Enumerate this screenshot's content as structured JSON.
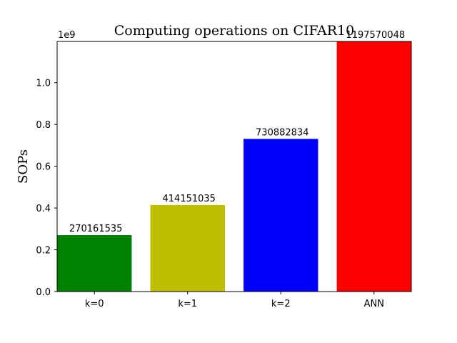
{
  "chart_data": {
    "type": "bar",
    "title": "Computing operations on CIFAR10",
    "xlabel": "",
    "ylabel": "SOPs",
    "y_offset_label": "1e9",
    "y_scale": 1000000000,
    "ylim": [
      0,
      1197570048
    ],
    "yticks": [
      0.0,
      0.2,
      0.4,
      0.6,
      0.8,
      1.0
    ],
    "ytick_labels": [
      "0.0",
      "0.2",
      "0.4",
      "0.6",
      "0.8",
      "1.0"
    ],
    "grid": false,
    "categories": [
      "k=0",
      "k=1",
      "k=2",
      "ANN"
    ],
    "values": [
      270161535,
      414151035,
      730882834,
      1197570048
    ],
    "data_labels": [
      "270161535",
      "414151035",
      "730882834",
      "1197570048"
    ],
    "colors": [
      "#008000",
      "#bfbf00",
      "#0000ff",
      "#ff0000"
    ]
  }
}
